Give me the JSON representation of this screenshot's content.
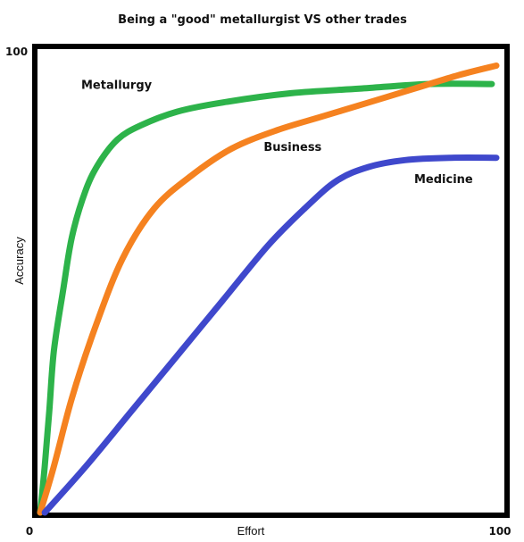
{
  "chart_data": {
    "type": "line",
    "title": "Being a \"good\" metallurgist    VS other trades",
    "xlabel": "Effort",
    "ylabel": "Accuracy",
    "xlim": [
      0,
      100
    ],
    "ylim": [
      0,
      100
    ],
    "x_tick_labels": {
      "min": "0",
      "max": "100"
    },
    "y_tick_labels": {
      "max": "100"
    },
    "grid": false,
    "legend": "none",
    "series": [
      {
        "name": "Metallurgy",
        "color": "#2db34a",
        "points": [
          [
            0,
            0
          ],
          [
            1,
            10
          ],
          [
            2,
            22
          ],
          [
            3,
            35
          ],
          [
            5,
            48
          ],
          [
            7,
            60
          ],
          [
            10,
            70
          ],
          [
            13,
            76
          ],
          [
            17,
            81
          ],
          [
            22,
            84
          ],
          [
            30,
            87
          ],
          [
            40,
            89
          ],
          [
            55,
            91
          ],
          [
            70,
            92
          ],
          [
            85,
            93
          ],
          [
            99,
            93
          ]
        ]
      },
      {
        "name": "Business",
        "color": "#f58220",
        "points": [
          [
            0,
            0
          ],
          [
            3,
            10
          ],
          [
            7,
            25
          ],
          [
            12,
            40
          ],
          [
            18,
            55
          ],
          [
            25,
            66
          ],
          [
            33,
            73
          ],
          [
            42,
            79
          ],
          [
            52,
            83
          ],
          [
            62,
            86
          ],
          [
            72,
            89
          ],
          [
            82,
            92
          ],
          [
            92,
            95
          ],
          [
            100,
            97
          ]
        ]
      },
      {
        "name": "Medicine",
        "color": "#3f48cc",
        "points": [
          [
            1,
            0
          ],
          [
            10,
            10
          ],
          [
            20,
            22
          ],
          [
            30,
            34
          ],
          [
            40,
            46
          ],
          [
            50,
            58
          ],
          [
            58,
            66
          ],
          [
            65,
            72
          ],
          [
            72,
            75
          ],
          [
            80,
            76.5
          ],
          [
            90,
            77
          ],
          [
            100,
            77
          ]
        ]
      }
    ],
    "annotations": [
      {
        "text": "Metallurgy",
        "x": 9,
        "y": 92
      },
      {
        "text": "Business",
        "x": 49,
        "y": 78.5
      },
      {
        "text": "Medicine",
        "x": 82,
        "y": 71.5
      }
    ]
  }
}
